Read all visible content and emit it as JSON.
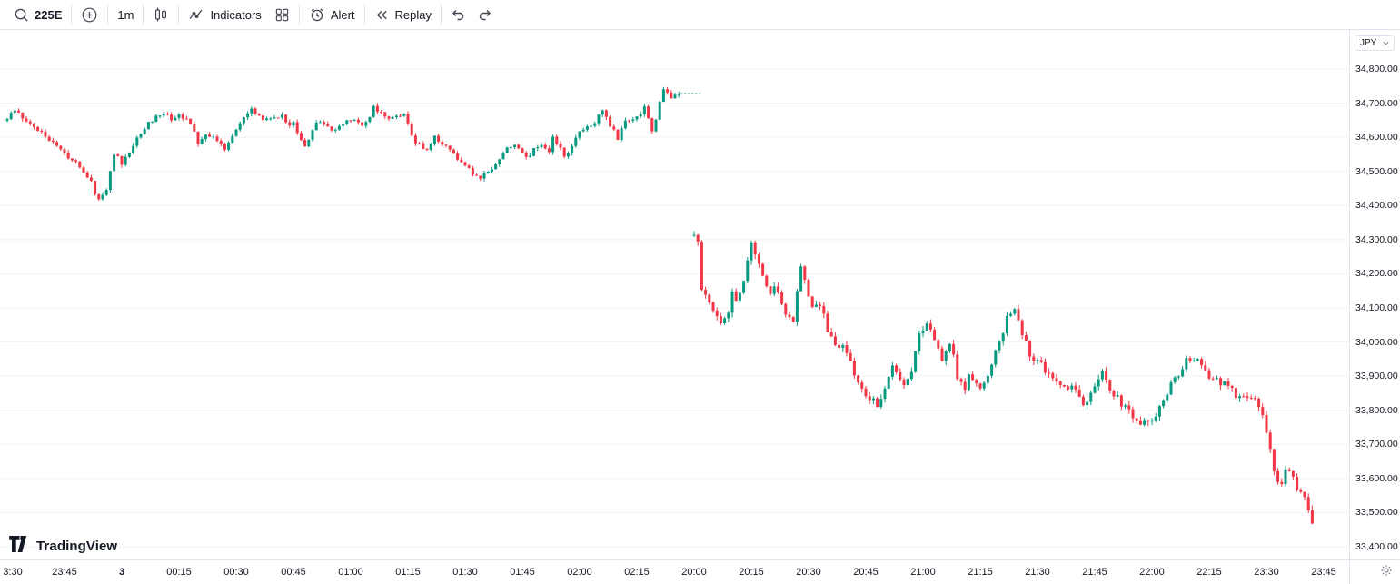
{
  "toolbar": {
    "symbol": "225E",
    "interval": "1m",
    "indicators_label": "Indicators",
    "alert_label": "Alert",
    "replay_label": "Replay"
  },
  "logo": {
    "text": "TradingView"
  },
  "price_axis": {
    "currency": "JPY",
    "labels": [
      "34,800.00",
      "34,700.00",
      "34,600.00",
      "34,500.00",
      "34,400.00",
      "34,300.00",
      "34,200.00",
      "34,100.00",
      "34,000.00",
      "33,900.00",
      "33,800.00",
      "33,700.00",
      "33,600.00",
      "33,500.00",
      "33,400.00"
    ]
  },
  "time_axis": {
    "ticks": [
      {
        "label": "3:30",
        "i": 0
      },
      {
        "label": "23:45",
        "i": 15
      },
      {
        "label": "3",
        "i": 30,
        "bold": true
      },
      {
        "label": "00:15",
        "i": 45
      },
      {
        "label": "00:30",
        "i": 60
      },
      {
        "label": "00:45",
        "i": 75
      },
      {
        "label": "01:00",
        "i": 90
      },
      {
        "label": "01:15",
        "i": 105
      },
      {
        "label": "01:30",
        "i": 120
      },
      {
        "label": "01:45",
        "i": 135
      },
      {
        "label": "02:00",
        "i": 150
      },
      {
        "label": "02:15",
        "i": 165
      },
      {
        "label": "20:00",
        "i": 180
      },
      {
        "label": "20:15",
        "i": 195
      },
      {
        "label": "20:30",
        "i": 210
      },
      {
        "label": "20:45",
        "i": 225
      },
      {
        "label": "21:00",
        "i": 240
      },
      {
        "label": "21:15",
        "i": 255
      },
      {
        "label": "21:30",
        "i": 270
      },
      {
        "label": "21:45",
        "i": 285
      },
      {
        "label": "22:00",
        "i": 300
      },
      {
        "label": "22:15",
        "i": 315
      },
      {
        "label": "23:30",
        "i": 330
      },
      {
        "label": "23:45",
        "i": 345
      }
    ]
  },
  "chart_data": {
    "type": "candlestick",
    "symbol": "225E",
    "interval": "1m",
    "currency": "JPY",
    "up_color": "#089981",
    "down_color": "#f23645",
    "grid_color": "#f0f3fa",
    "price_range": {
      "min": 33400,
      "max": 34800,
      "grid_step": 100
    },
    "sessions": [
      {
        "name": "overnight-session",
        "jitter": 14,
        "wick": 9,
        "waypoints": [
          [
            0,
            34660
          ],
          [
            2,
            34685
          ],
          [
            4,
            34650
          ],
          [
            7,
            34630
          ],
          [
            10,
            34600
          ],
          [
            13,
            34570
          ],
          [
            16,
            34545
          ],
          [
            19,
            34515
          ],
          [
            22,
            34470
          ],
          [
            23,
            34430
          ],
          [
            24,
            34415
          ],
          [
            26,
            34450
          ],
          [
            27,
            34500
          ],
          [
            28,
            34555
          ],
          [
            30,
            34525
          ],
          [
            32,
            34555
          ],
          [
            34,
            34595
          ],
          [
            36,
            34630
          ],
          [
            38,
            34650
          ],
          [
            41,
            34672
          ],
          [
            43,
            34655
          ],
          [
            45,
            34662
          ],
          [
            47,
            34648
          ],
          [
            49,
            34622
          ],
          [
            50,
            34585
          ],
          [
            52,
            34605
          ],
          [
            55,
            34595
          ],
          [
            57,
            34560
          ],
          [
            59,
            34600
          ],
          [
            61,
            34640
          ],
          [
            63,
            34668
          ],
          [
            64,
            34688
          ],
          [
            66,
            34662
          ],
          [
            68,
            34650
          ],
          [
            70,
            34660
          ],
          [
            72,
            34662
          ],
          [
            74,
            34638
          ],
          [
            75,
            34650
          ],
          [
            77,
            34588
          ],
          [
            78,
            34570
          ],
          [
            80,
            34618
          ],
          [
            81,
            34648
          ],
          [
            83,
            34632
          ],
          [
            85,
            34618
          ],
          [
            87,
            34638
          ],
          [
            89,
            34652
          ],
          [
            91,
            34658
          ],
          [
            93,
            34638
          ],
          [
            95,
            34662
          ],
          [
            96,
            34688
          ],
          [
            98,
            34668
          ],
          [
            100,
            34650
          ],
          [
            102,
            34662
          ],
          [
            104,
            34668
          ],
          [
            105,
            34640
          ],
          [
            106,
            34600
          ],
          [
            108,
            34578
          ],
          [
            110,
            34568
          ],
          [
            112,
            34598
          ],
          [
            114,
            34578
          ],
          [
            116,
            34562
          ],
          [
            118,
            34540
          ],
          [
            120,
            34515
          ],
          [
            122,
            34495
          ],
          [
            124,
            34478
          ],
          [
            126,
            34498
          ],
          [
            128,
            34518
          ],
          [
            130,
            34558
          ],
          [
            133,
            34578
          ],
          [
            135,
            34558
          ],
          [
            136,
            34538
          ],
          [
            138,
            34562
          ],
          [
            140,
            34578
          ],
          [
            142,
            34558
          ],
          [
            143,
            34598
          ],
          [
            145,
            34568
          ],
          [
            146,
            34538
          ],
          [
            148,
            34578
          ],
          [
            150,
            34618
          ],
          [
            152,
            34632
          ],
          [
            154,
            34648
          ],
          [
            156,
            34686
          ],
          [
            158,
            34638
          ],
          [
            160,
            34598
          ],
          [
            162,
            34648
          ],
          [
            164,
            34652
          ],
          [
            166,
            34662
          ],
          [
            167,
            34688
          ],
          [
            169,
            34618
          ],
          [
            171,
            34698
          ],
          [
            172,
            34738
          ],
          [
            174,
            34718
          ],
          [
            176,
            34728
          ]
        ]
      },
      {
        "name": "day-session",
        "jitter": 18,
        "wick": 14,
        "waypoints": [
          [
            180,
            34310
          ],
          [
            181,
            34295
          ],
          [
            182,
            34150
          ],
          [
            184,
            34120
          ],
          [
            186,
            34080
          ],
          [
            187,
            34060
          ],
          [
            189,
            34090
          ],
          [
            190,
            34140
          ],
          [
            191,
            34118
          ],
          [
            193,
            34178
          ],
          [
            194,
            34238
          ],
          [
            195,
            34288
          ],
          [
            196,
            34258
          ],
          [
            198,
            34198
          ],
          [
            199,
            34158
          ],
          [
            200,
            34140
          ],
          [
            201,
            34158
          ],
          [
            203,
            34118
          ],
          [
            204,
            34080
          ],
          [
            206,
            34058
          ],
          [
            207,
            34148
          ],
          [
            208,
            34228
          ],
          [
            209,
            34178
          ],
          [
            211,
            34098
          ],
          [
            212,
            34118
          ],
          [
            214,
            34078
          ],
          [
            215,
            34038
          ],
          [
            217,
            33998
          ],
          [
            218,
            33978
          ],
          [
            219,
            33990
          ],
          [
            221,
            33938
          ],
          [
            222,
            33898
          ],
          [
            224,
            33868
          ],
          [
            225,
            33848
          ],
          [
            227,
            33828
          ],
          [
            228,
            33818
          ],
          [
            230,
            33858
          ],
          [
            231,
            33898
          ],
          [
            232,
            33938
          ],
          [
            234,
            33898
          ],
          [
            235,
            33878
          ],
          [
            237,
            33918
          ],
          [
            238,
            33968
          ],
          [
            239,
            34018
          ],
          [
            241,
            34048
          ],
          [
            242,
            34028
          ],
          [
            244,
            33988
          ],
          [
            245,
            33948
          ],
          [
            247,
            33998
          ],
          [
            248,
            33968
          ],
          [
            249,
            33898
          ],
          [
            251,
            33868
          ],
          [
            252,
            33898
          ],
          [
            254,
            33878
          ],
          [
            255,
            33858
          ],
          [
            257,
            33898
          ],
          [
            258,
            33938
          ],
          [
            259,
            33968
          ],
          [
            261,
            34018
          ],
          [
            262,
            34078
          ],
          [
            264,
            34098
          ],
          [
            265,
            34058
          ],
          [
            267,
            33998
          ],
          [
            268,
            33958
          ],
          [
            269,
            33938
          ],
          [
            271,
            33948
          ],
          [
            272,
            33918
          ],
          [
            274,
            33898
          ],
          [
            275,
            33888
          ],
          [
            277,
            33868
          ],
          [
            278,
            33858
          ],
          [
            279,
            33878
          ],
          [
            281,
            33848
          ],
          [
            282,
            33818
          ],
          [
            284,
            33848
          ],
          [
            285,
            33878
          ],
          [
            287,
            33918
          ],
          [
            288,
            33888
          ],
          [
            289,
            33858
          ],
          [
            291,
            33838
          ],
          [
            292,
            33818
          ],
          [
            294,
            33798
          ],
          [
            295,
            33778
          ],
          [
            297,
            33758
          ],
          [
            298,
            33778
          ],
          [
            299,
            33768
          ],
          [
            301,
            33788
          ],
          [
            302,
            33818
          ],
          [
            304,
            33848
          ],
          [
            305,
            33878
          ],
          [
            307,
            33908
          ],
          [
            308,
            33928
          ],
          [
            309,
            33948
          ],
          [
            311,
            33938
          ],
          [
            312,
            33948
          ],
          [
            314,
            33918
          ],
          [
            315,
            33898
          ],
          [
            317,
            33888
          ],
          [
            318,
            33868
          ],
          [
            319,
            33878
          ],
          [
            321,
            33858
          ],
          [
            322,
            33838
          ],
          [
            324,
            33848
          ],
          [
            325,
            33828
          ],
          [
            327,
            33828
          ],
          [
            328,
            33818
          ],
          [
            329,
            33788
          ],
          [
            330,
            33738
          ],
          [
            331,
            33678
          ],
          [
            332,
            33618
          ],
          [
            334,
            33578
          ],
          [
            335,
            33628
          ],
          [
            337,
            33608
          ],
          [
            338,
            33568
          ],
          [
            340,
            33538
          ],
          [
            341,
            33508
          ],
          [
            342,
            33468
          ]
        ]
      }
    ],
    "last_price_dash": {
      "price": 34728,
      "from_index": 176,
      "to_index": 181
    }
  }
}
